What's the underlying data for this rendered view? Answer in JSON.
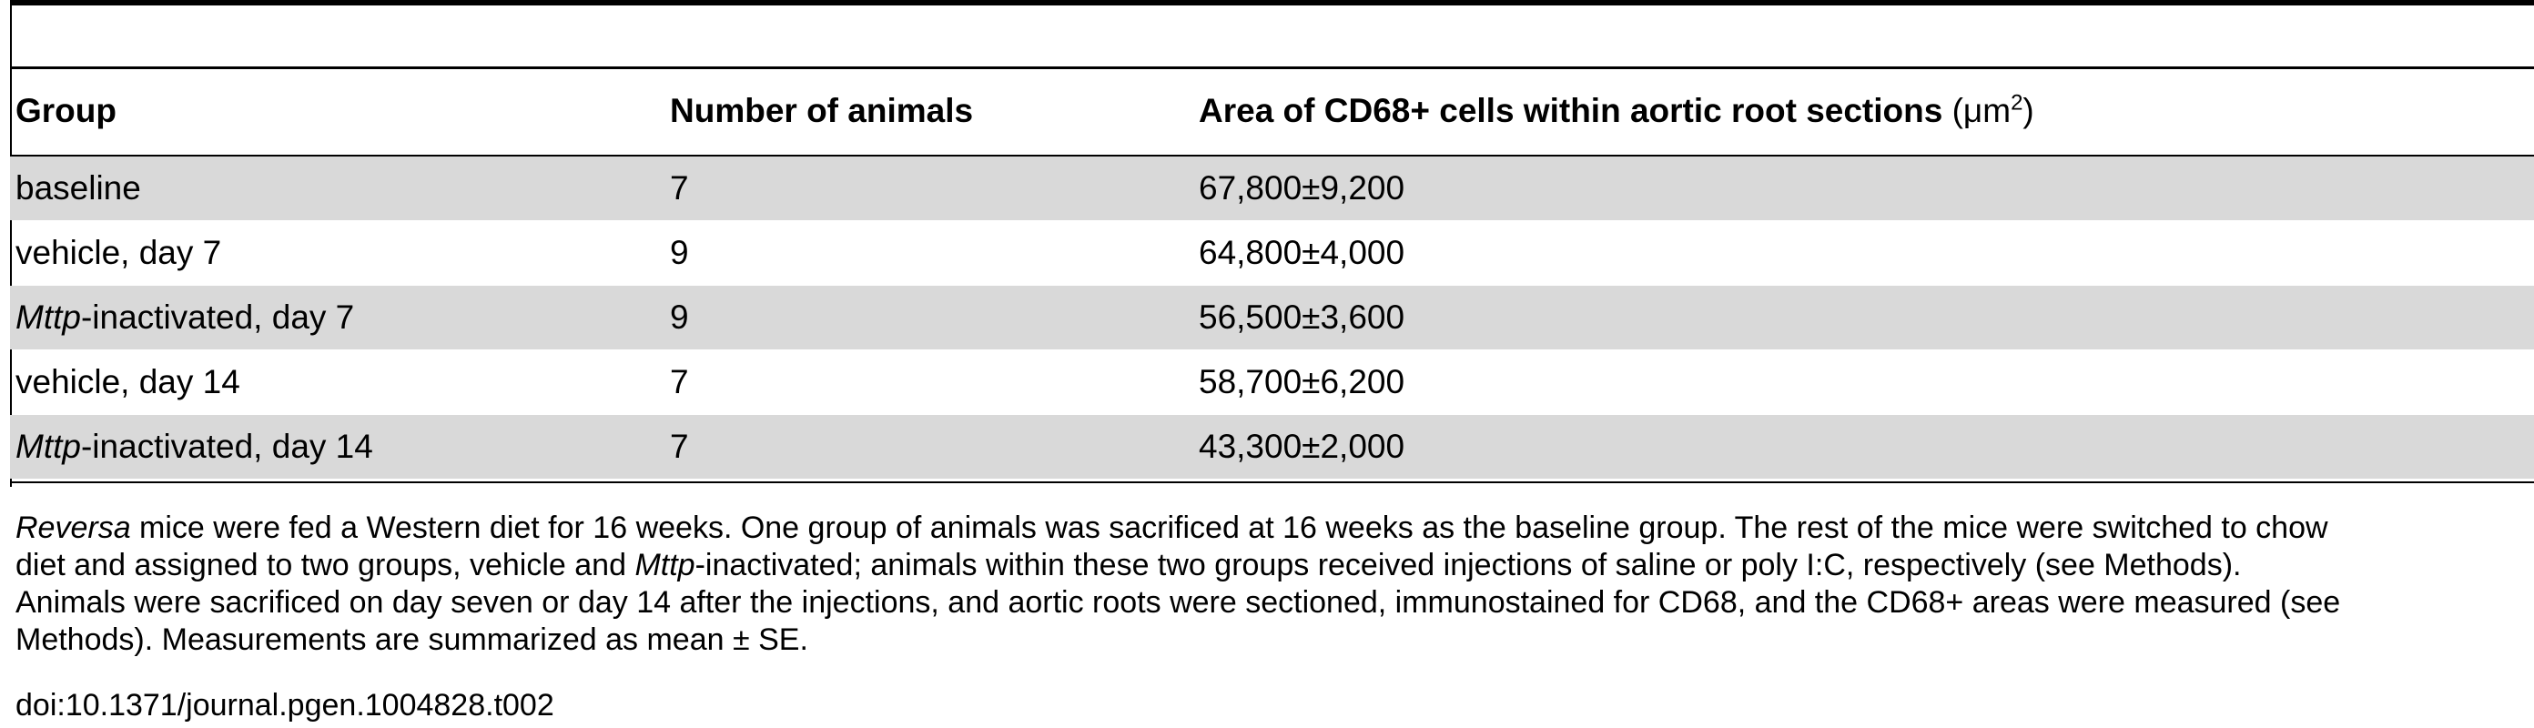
{
  "table": {
    "headers": {
      "group": "Group",
      "number": "Number of animals",
      "area": "Area of CD68+ cells within aortic root sections",
      "area_unit_open": "(",
      "area_unit": "μm",
      "area_unit_sup": "2",
      "area_unit_close": ")"
    },
    "rows": [
      {
        "group_italic": "",
        "group_rest": "baseline",
        "number": "7",
        "area": "67,800±9,200"
      },
      {
        "group_italic": "",
        "group_rest": "vehicle, day 7",
        "number": "9",
        "area": "64,800±4,000"
      },
      {
        "group_italic": "Mttp",
        "group_rest": "-inactivated, day 7",
        "number": "9",
        "area": "56,500±3,600"
      },
      {
        "group_italic": "",
        "group_rest": "vehicle, day 14",
        "number": "7",
        "area": "58,700±6,200"
      },
      {
        "group_italic": "Mttp",
        "group_rest": "-inactivated, day 14",
        "number": "7",
        "area": "43,300±2,000"
      }
    ]
  },
  "caption": {
    "line1_italic": "Reversa",
    "line1_rest": " mice were fed a Western diet for 16 weeks. One group of animals was sacrificed at 16 weeks as the baseline group. The rest of the mice were switched to chow",
    "line2_pre": "diet and assigned to two groups, vehicle and ",
    "line2_italic": "Mttp",
    "line2_rest": "-inactivated; animals within these two groups received injections of saline or poly I:C, respectively (see Methods).",
    "line3": "Animals were sacrificed on day seven or day 14 after the injections, and aortic roots were sectioned, immunostained for CD68, and the CD68+ areas were measured (see",
    "line4": "Methods). Measurements are summarized as mean ± SE."
  },
  "doi": "doi:10.1371/journal.pgen.1004828.t002"
}
